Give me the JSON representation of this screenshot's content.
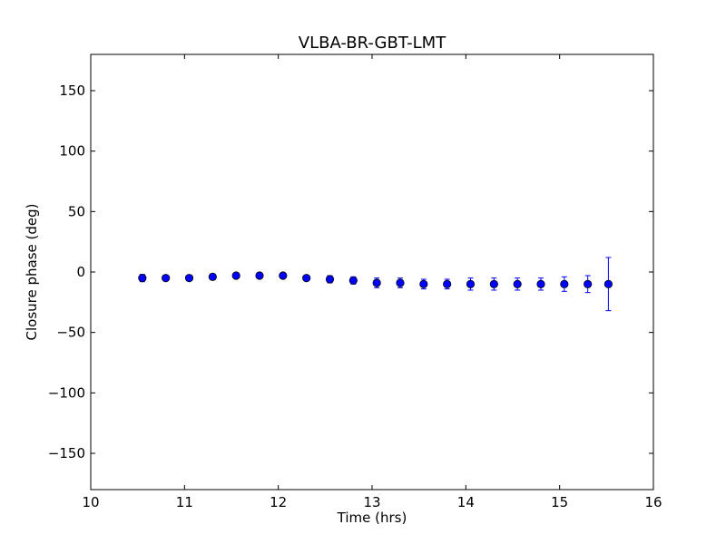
{
  "chart_data": {
    "type": "scatter",
    "title": "VLBA-BR-GBT-LMT",
    "xlabel": "Time (hrs)",
    "ylabel": "Closure phase (deg)",
    "xlim": [
      10,
      16
    ],
    "ylim": [
      -180,
      180
    ],
    "xticks": [
      10,
      11,
      12,
      13,
      14,
      15,
      16
    ],
    "yticks": [
      150,
      100,
      50,
      0,
      -50,
      -100,
      -150
    ],
    "xtick_labels": [
      "10",
      "11",
      "12",
      "13",
      "14",
      "15",
      "16"
    ],
    "ytick_labels": [
      "150",
      "100",
      "50",
      "0",
      "−50",
      "−100",
      "−150"
    ],
    "grid": false,
    "legend": "none",
    "series": [
      {
        "color": "#0000ff",
        "marker": "circle",
        "error_bars": true,
        "x": [
          10.55,
          10.8,
          11.05,
          11.3,
          11.55,
          11.8,
          12.05,
          12.3,
          12.55,
          12.8,
          13.05,
          13.3,
          13.55,
          13.8,
          14.05,
          14.3,
          14.55,
          14.8,
          15.05,
          15.3,
          15.52
        ],
        "y": [
          -5,
          -5,
          -5,
          -4,
          -3,
          -3,
          -3,
          -5,
          -6,
          -7,
          -9,
          -9,
          -10,
          -10,
          -10,
          -10,
          -10,
          -10,
          -10,
          -10,
          -10
        ],
        "yerr": [
          3,
          2,
          2,
          2,
          2,
          2,
          2,
          2,
          3,
          3,
          4,
          4,
          4,
          4,
          5,
          5,
          5,
          5,
          6,
          7,
          22
        ]
      }
    ]
  }
}
